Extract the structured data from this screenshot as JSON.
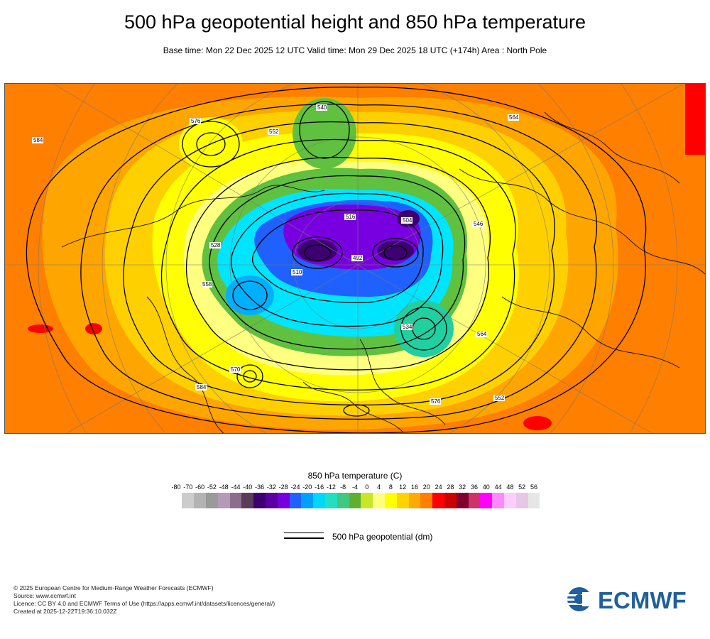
{
  "header": {
    "title": "500 hPa geopotential height and 850 hPa temperature",
    "subtitle": "Base time: Mon 22 Dec 2025 12 UTC Valid time: Mon 29 Dec 2025 18 UTC (+174h) Area : North Pole"
  },
  "map": {
    "type": "polar-stereographic",
    "area": "North Pole",
    "temperature_fill_colors": {
      "warm_outer": "#ff7f00",
      "orange": "#ffa500",
      "light_orange": "#ffd000",
      "yellow": "#ffff00",
      "pale_yellow": "#ffff80",
      "yellow_green": "#c0e020",
      "green": "#60c040",
      "teal": "#20d0a0",
      "cyan": "#00e5ff",
      "light_blue": "#00b0ff",
      "blue": "#2060ff",
      "violet": "#7000e0",
      "deep_purple": "#3c0070",
      "red": "#ff0000"
    },
    "contour_labels": [
      "516",
      "528",
      "540",
      "552",
      "564",
      "576",
      "584",
      "504",
      "492",
      "510",
      "534",
      "546",
      "558",
      "570"
    ]
  },
  "colorbar": {
    "title": "850 hPa temperature (C)",
    "ticks": [
      "-80",
      "-70",
      "-60",
      "-52",
      "-48",
      "-44",
      "-40",
      "-36",
      "-32",
      "-28",
      "-24",
      "-20",
      "-16",
      "-12",
      "-8",
      "-4",
      "0",
      "4",
      "8",
      "12",
      "16",
      "20",
      "24",
      "28",
      "32",
      "36",
      "40",
      "44",
      "48",
      "52",
      "56"
    ],
    "colors": [
      "#e6e6e6",
      "#cccccc",
      "#b3b3b3",
      "#9a9a9a",
      "#b49ab4",
      "#8c6e8c",
      "#5a3c5a",
      "#3c0070",
      "#5a00a0",
      "#7800e0",
      "#2060ff",
      "#00a0ff",
      "#00d8ff",
      "#20e0c0",
      "#40c880",
      "#60b030",
      "#c8e628",
      "#ffff80",
      "#ffff00",
      "#ffd200",
      "#ffaa00",
      "#ff7f00",
      "#ff0000",
      "#cc0000",
      "#800030",
      "#cc3366",
      "#ff00ff",
      "#ff88ff",
      "#ffccff",
      "#e6c8e6",
      "#e6e6e6"
    ]
  },
  "legend": {
    "label": "500 hPa geopotential (dm)"
  },
  "credits": {
    "line1": "© 2025 European Centre for Medium-Range Weather Forecasts (ECMWF)",
    "line2": "Source: www.ecmwf.int",
    "line3": "Licence: CC BY 4.0 and ECMWF Terms of Use (https://apps.ecmwf.int/datasets/licences/general/)",
    "line4": "Created at 2025-12-22T19:36:10.032Z"
  },
  "logo": {
    "text": "ECMWF",
    "color": "#1f5f9c"
  }
}
